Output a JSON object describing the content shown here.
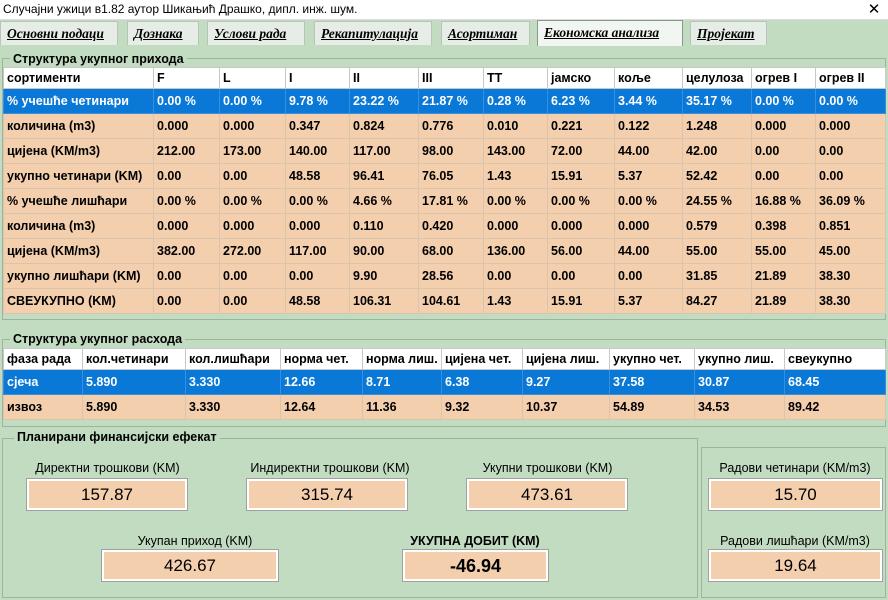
{
  "window": {
    "title": "Случајни ужици  в1.82  аутор Шикањић Драшко, дипл. инж. шум.",
    "close": "✕"
  },
  "tabs": [
    {
      "label": "Основни подаци"
    },
    {
      "label": "Дознака"
    },
    {
      "label": "Услови рада"
    },
    {
      "label": "Рекапитулација"
    },
    {
      "label": "Асортиман"
    },
    {
      "label": "Економска анализа"
    },
    {
      "label": "Пројекат"
    }
  ],
  "income": {
    "title": "Структура укупног прихода",
    "headers": [
      "сортименти",
      "F",
      "L",
      "I",
      "II",
      "III",
      "TT",
      "јамско",
      "коље",
      "целулоза",
      "огрев I",
      "огрев II"
    ],
    "rows": [
      [
        "% учешће четинари",
        "0.00 %",
        "0.00 %",
        "9.78 %",
        "23.22 %",
        "21.87 %",
        "0.28 %",
        "6.23 %",
        "3.44 %",
        "35.17 %",
        "0.00 %",
        "0.00 %"
      ],
      [
        "количина (m3)",
        "0.000",
        "0.000",
        "0.347",
        "0.824",
        "0.776",
        "0.010",
        "0.221",
        "0.122",
        "1.248",
        "0.000",
        "0.000"
      ],
      [
        "цијена (KM/m3)",
        "212.00",
        "173.00",
        "140.00",
        "117.00",
        "98.00",
        "143.00",
        "72.00",
        "44.00",
        "42.00",
        "0.00",
        "0.00"
      ],
      [
        "укупно четинари (KM)",
        "0.00",
        "0.00",
        "48.58",
        "96.41",
        "76.05",
        "1.43",
        "15.91",
        "5.37",
        "52.42",
        "0.00",
        "0.00"
      ],
      [
        "% учешће лишћари",
        "0.00 %",
        "0.00 %",
        "0.00 %",
        "4.66 %",
        "17.81 %",
        "0.00 %",
        "0.00 %",
        "0.00 %",
        "24.55 %",
        "16.88 %",
        "36.09 %"
      ],
      [
        "количина (m3)",
        "0.000",
        "0.000",
        "0.000",
        "0.110",
        "0.420",
        "0.000",
        "0.000",
        "0.000",
        "0.579",
        "0.398",
        "0.851"
      ],
      [
        "цијена (KM/m3)",
        "382.00",
        "272.00",
        "117.00",
        "90.00",
        "68.00",
        "136.00",
        "56.00",
        "44.00",
        "55.00",
        "55.00",
        "45.00"
      ],
      [
        "укупно лишћари (KM)",
        "0.00",
        "0.00",
        "0.00",
        "9.90",
        "28.56",
        "0.00",
        "0.00",
        "0.00",
        "31.85",
        "21.89",
        "38.30"
      ],
      [
        "СВЕУКУПНО (KM)",
        "0.00",
        "0.00",
        "48.58",
        "106.31",
        "104.61",
        "1.43",
        "15.91",
        "5.37",
        "84.27",
        "21.89",
        "38.30"
      ]
    ]
  },
  "expense": {
    "title": "Структура укупног расхода",
    "headers": [
      "фаза рада",
      "кол.четинари",
      "кол.лишћари",
      "норма чет.",
      "норма лиш.",
      "цијена чет.",
      "цијена лиш.",
      "укупно чет.",
      "укупно лиш.",
      "свеукупно"
    ],
    "rows": [
      [
        "сјеча",
        "5.890",
        "3.330",
        "12.66",
        "8.71",
        "6.38",
        "9.27",
        "37.58",
        "30.87",
        "68.45"
      ],
      [
        "извоз",
        "5.890",
        "3.330",
        "12.64",
        "11.36",
        "9.32",
        "10.37",
        "54.89",
        "34.53",
        "89.42"
      ]
    ]
  },
  "finance": {
    "title": "Планирани финансијски ефекат",
    "direct_label": "Директни трошкови  (KM)",
    "direct_value": "157.87",
    "indirect_label": "Индиректни трошкови  (KM)",
    "indirect_value": "315.74",
    "total_cost_label": "Укупни трошкови  (KM)",
    "total_cost_value": "473.61",
    "income_label": "Укупан приход  (KM)",
    "income_value": "426.67",
    "profit_label": "УКУПНА ДОБИТ  (KM)",
    "profit_value": "-46.94",
    "conifer_label": "Радови четинари  (KM/m3)",
    "conifer_value": "15.70",
    "broadleaf_label": "Радови лишћари  (KM/m3)",
    "broadleaf_value": "19.64"
  }
}
